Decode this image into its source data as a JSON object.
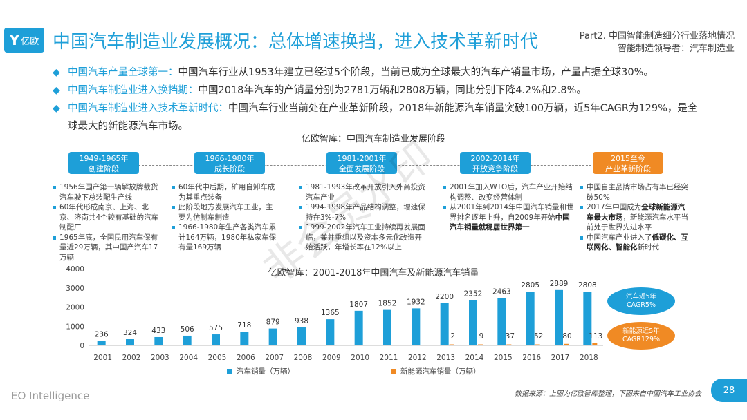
{
  "header": {
    "logo_text": "亿欧",
    "title": "中国汽车制造业发展概况：总体增速换挡，进入技术革新时代",
    "part_line1": "Part2. 中国智能制造细分行业落地情况",
    "part_line2": "智能制造领导者：汽车制造业"
  },
  "bullets": [
    {
      "key": "中国汽车产量全球第一：",
      "text": "中国汽车行业从1953年建立已经过5个阶段，当前已成为全球最大的汽车产销量市场，产量占据全球30%。"
    },
    {
      "key": "中国汽车制造业进入换挡期：",
      "text": "中国2018年汽车的产销量分别为2781万辆和2808万辆，同比分别下降4.2%和2.8%。"
    },
    {
      "key": "中国汽车制造业进入技术革新时代：",
      "text": "中国汽车行业当前处在产业革新阶段，2018年新能源汽车销量突破100万辆，近5年CAGR为129%，是全球最大的新能源汽车市场。"
    }
  ],
  "timeline": {
    "title": "亿欧智库：中国汽车制造业发展阶段",
    "stages": [
      {
        "years": "1949-1965年",
        "name": "创建阶段"
      },
      {
        "years": "1966-1980年",
        "name": "成长阶段"
      },
      {
        "years": "1981-2001年",
        "name": "全面发展阶段"
      },
      {
        "years": "2002-2014年",
        "name": "开放竞争阶段"
      },
      {
        "years": "2015至今",
        "name": "产业革新阶段"
      }
    ],
    "columns": [
      [
        "1956年国产第一辆解放牌载货汽车驶下总装配生产线",
        "60年代形成南京、上海、北京、济南共4个较有基础的汽车制配厂",
        "1965年底，全国民用汽车保有量近29万辆，其中国产汽车17万辆"
      ],
      [
        "60年代中后期，矿用自卸车成为其重点装备",
        "此阶段地方发展汽车工业，主要为仿制车制造",
        "1966-1980年生产各类汽车累计164万辆，1980年私家车保有量169万辆"
      ],
      [
        "1981-1993年改革开放引入外商投资汽车产业",
        "1994-1998年产品结构调整，增速保持在3%-7%",
        "1999-2002年汽车工业持续再发展面临，兼并重组以及资本多元化改造开始活跃，年增长率在12%以上"
      ],
      [
        "2001年加入WTO后，汽车产业开始结构调整、改变经营体制",
        "从2001年到2014年中国汽车销量和世界排名逐年上升，自2009年开始"
      ],
      [
        "中国自主品牌市场占有率已经突破50%"
      ]
    ],
    "col4_bold": "中国汽车销量就稳居世界第一",
    "col5": {
      "item2_pre": "2017年中国成为",
      "item2_bold": "全球新能源汽车最大市场",
      "item2_post": "，新能源汽车水平当前处于世界先进水平",
      "item3_pre": "中国汽车产业进入了",
      "item3_bold": "低碳化、互联网化、智能化",
      "item3_post": "新时代"
    }
  },
  "chart_data": {
    "type": "bar",
    "title": "亿欧智库：2001-2018年中国汽车及新能源汽车销量",
    "categories": [
      "2001",
      "2002",
      "2003",
      "2004",
      "2005",
      "2006",
      "2007",
      "2008",
      "2009",
      "2010",
      "2011",
      "2012",
      "2013",
      "2014",
      "2015",
      "2016",
      "2017",
      "2018"
    ],
    "series": [
      {
        "name": "汽车销量（万辆）",
        "color": "#1e9fd8",
        "values": [
          236,
          324,
          433,
          506,
          575,
          718,
          879,
          938,
          1365,
          1807,
          1852,
          1932,
          2200,
          2352,
          2463,
          2805,
          2889,
          2808
        ]
      },
      {
        "name": "新能源汽车销量（万辆）",
        "color": "#f08a24",
        "values": [
          null,
          null,
          null,
          null,
          null,
          null,
          null,
          null,
          null,
          null,
          null,
          null,
          2,
          9,
          37,
          52,
          80,
          113
        ]
      }
    ],
    "ylim": [
      0,
      4000
    ],
    "yticks": [
      0,
      1000,
      2000,
      3000,
      4000
    ],
    "annotations": [
      "汽车近5年CAGR5%",
      "新能源近5年CAGR129%"
    ],
    "ovals": [
      {
        "line1": "汽车近5年",
        "line2": "CAGR5%"
      },
      {
        "line1": "新能源近5年",
        "line2": "CAGR129%"
      }
    ]
  },
  "footer": {
    "brand": "EO Intelligence",
    "source": "数据来源：上图为亿欧智库整理，下图来自中国汽车工业协会",
    "page": "28"
  },
  "watermark": "非会员水印"
}
